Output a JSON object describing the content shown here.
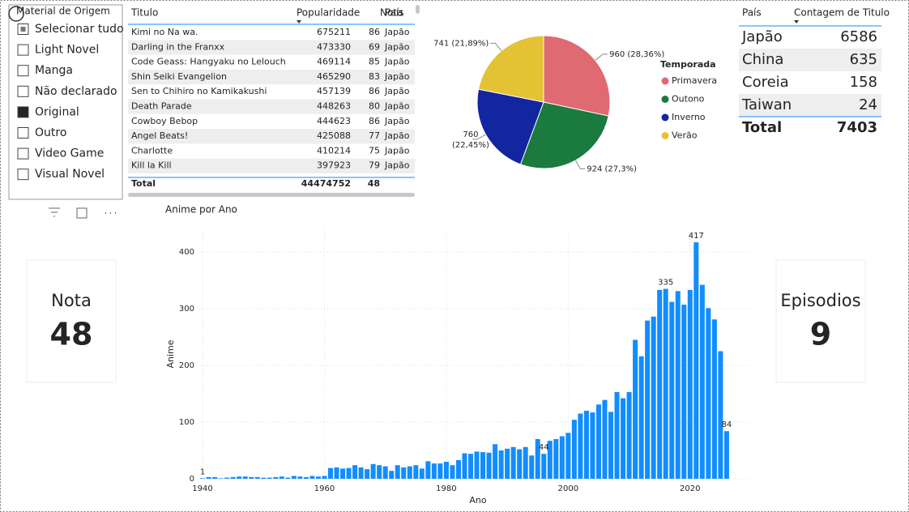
{
  "slicer": {
    "title": "Material de Origem",
    "items": [
      {
        "label": "Selecionar tudo",
        "checked": "partial"
      },
      {
        "label": "Light Novel",
        "checked": false
      },
      {
        "label": "Manga",
        "checked": false
      },
      {
        "label": "Não declarado",
        "checked": false
      },
      {
        "label": "Original",
        "checked": true
      },
      {
        "label": "Outro",
        "checked": false
      },
      {
        "label": "Video Game",
        "checked": false
      },
      {
        "label": "Visual Novel",
        "checked": false
      }
    ]
  },
  "table": {
    "columns": [
      "Titulo",
      "Popularidade",
      "Nota",
      "País"
    ],
    "rows": [
      [
        "Kimi no Na wa.",
        675211,
        86,
        "Japão"
      ],
      [
        "Darling in the Franxx",
        473330,
        69,
        "Japão"
      ],
      [
        "Code Geass: Hangyaku no Lelouch",
        469114,
        85,
        "Japão"
      ],
      [
        "Shin Seiki Evangelion",
        465290,
        83,
        "Japão"
      ],
      [
        "Sen to Chihiro no Kamikakushi",
        457139,
        86,
        "Japão"
      ],
      [
        "Death Parade",
        448263,
        80,
        "Japão"
      ],
      [
        "Cowboy Bebop",
        444623,
        86,
        "Japão"
      ],
      [
        "Angel Beats!",
        425088,
        77,
        "Japão"
      ],
      [
        "Charlotte",
        410214,
        75,
        "Japão"
      ],
      [
        "Kill la Kill",
        397923,
        79,
        "Japão"
      ]
    ],
    "total": [
      "Total",
      44474752,
      48
    ]
  },
  "country_table": {
    "columns": [
      "País",
      "Contagem de Titulo"
    ],
    "rows": [
      [
        "Japão",
        6586
      ],
      [
        "China",
        635
      ],
      [
        "Coreia",
        158
      ],
      [
        "Taiwan",
        24
      ]
    ],
    "total": [
      "Total",
      7403
    ]
  },
  "cards": [
    {
      "label": "Nota",
      "value": 48
    },
    {
      "label": "Episodios",
      "value": 9
    }
  ],
  "chart_data": [
    {
      "type": "pie",
      "legend_title": "Temporada",
      "legend": "right",
      "categories": [
        "Primavera",
        "Outono",
        "Inverno",
        "Verão"
      ],
      "values": [
        960,
        924,
        760,
        741
      ],
      "value_labels": [
        "960 (28,36%)",
        "924 (27,3%)",
        "760 (22,45%)",
        "741 (21,89%)"
      ],
      "colors": [
        "#df6a72",
        "#1b7a3d",
        "#1226a0",
        "#e3c234"
      ]
    },
    {
      "type": "bar",
      "title": "Anime por Ano",
      "x_label": "Ano",
      "y_label": "Anime",
      "color": "#118dff",
      "grid": true,
      "x": [
        1940,
        1941,
        1942,
        1943,
        1944,
        1945,
        1946,
        1947,
        1948,
        1949,
        1950,
        1951,
        1952,
        1953,
        1954,
        1955,
        1956,
        1957,
        1958,
        1959,
        1960,
        1961,
        1962,
        1963,
        1964,
        1965,
        1966,
        1967,
        1968,
        1969,
        1970,
        1971,
        1972,
        1973,
        1974,
        1975,
        1976,
        1977,
        1978,
        1979,
        1980,
        1981,
        1982,
        1983,
        1984,
        1985,
        1986,
        1987,
        1988,
        1989,
        1990,
        1991,
        1992,
        1993,
        1994,
        1995,
        1996,
        1997,
        1998,
        1999,
        2000,
        2001,
        2002,
        2003,
        2004,
        2005,
        2006,
        2007,
        2008,
        2009,
        2010,
        2011,
        2012,
        2013,
        2014,
        2015,
        2016,
        2017,
        2018,
        2019,
        2020,
        2021,
        2022,
        2023,
        2024,
        2025,
        2026
      ],
      "values": [
        1,
        3,
        3,
        1,
        2,
        3,
        4,
        4,
        3,
        3,
        2,
        2,
        3,
        4,
        2,
        5,
        4,
        3,
        5,
        4,
        5,
        19,
        20,
        18,
        19,
        24,
        20,
        17,
        26,
        24,
        22,
        14,
        24,
        20,
        22,
        24,
        18,
        31,
        27,
        27,
        30,
        24,
        33,
        45,
        44,
        48,
        47,
        46,
        61,
        50,
        53,
        56,
        52,
        56,
        41,
        70,
        44,
        67,
        70,
        75,
        81,
        104,
        115,
        120,
        117,
        131,
        139,
        118,
        153,
        142,
        153,
        245,
        216,
        279,
        286,
        333,
        335,
        312,
        331,
        307,
        333,
        417,
        342,
        301,
        281,
        225,
        84
      ],
      "labeled_points": [
        0,
        56,
        76,
        81,
        86
      ],
      "xlim": [
        1939,
        2030
      ],
      "xticks": [
        1940,
        1960,
        1980,
        2000,
        2020
      ],
      "ylim": [
        0,
        440
      ],
      "yticks": [
        0,
        100,
        200,
        300,
        400
      ]
    }
  ]
}
